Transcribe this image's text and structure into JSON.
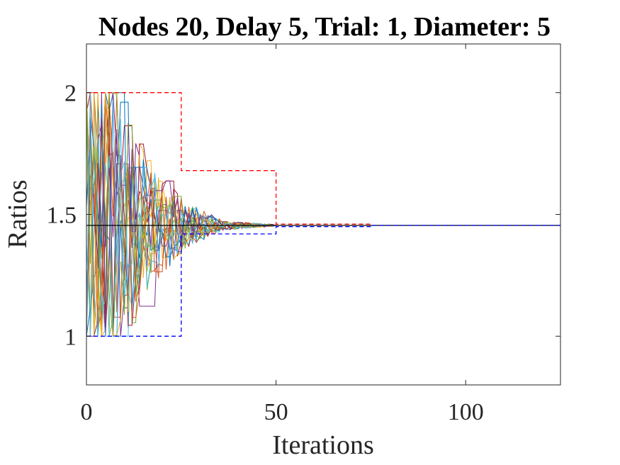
{
  "chart_data": {
    "type": "line",
    "title": "Nodes 20, Delay 5, Trial: 1, Diameter: 5",
    "xlabel": "Iterations",
    "ylabel": "Ratios",
    "xlim": [
      0,
      125
    ],
    "ylim": [
      0.8,
      2.2
    ],
    "xticks": [
      0,
      50,
      100
    ],
    "xtick_labels": [
      "0",
      "50",
      "100"
    ],
    "yticks": [
      1,
      1.5,
      2
    ],
    "ytick_labels": [
      "1",
      "1.5",
      "2"
    ],
    "grid": false,
    "legend": "none",
    "converged_value": 1.455,
    "node_count": 20,
    "series_colors": [
      "#0072BD",
      "#D95319",
      "#EDB120",
      "#7E2F8E",
      "#77AC30",
      "#4DBEEE",
      "#A2142F"
    ],
    "upper_bound": {
      "color": "#FF0000",
      "style": "dashed",
      "points": [
        [
          0,
          2
        ],
        [
          25,
          2
        ],
        [
          25,
          1.68
        ],
        [
          50,
          1.68
        ],
        [
          50,
          1.46
        ],
        [
          75,
          1.46
        ]
      ]
    },
    "lower_bound": {
      "color": "#0000FF",
      "style": "dashed",
      "points": [
        [
          0,
          1
        ],
        [
          25,
          1
        ],
        [
          25,
          1.42
        ],
        [
          50,
          1.42
        ],
        [
          50,
          1.45
        ],
        [
          75,
          1.45
        ],
        [
          75,
          1.455
        ],
        [
          125,
          1.455
        ]
      ]
    },
    "reference_line": {
      "color": "#000000",
      "style": "solid",
      "points": [
        [
          0,
          1.455
        ],
        [
          125,
          1.455
        ]
      ]
    }
  }
}
